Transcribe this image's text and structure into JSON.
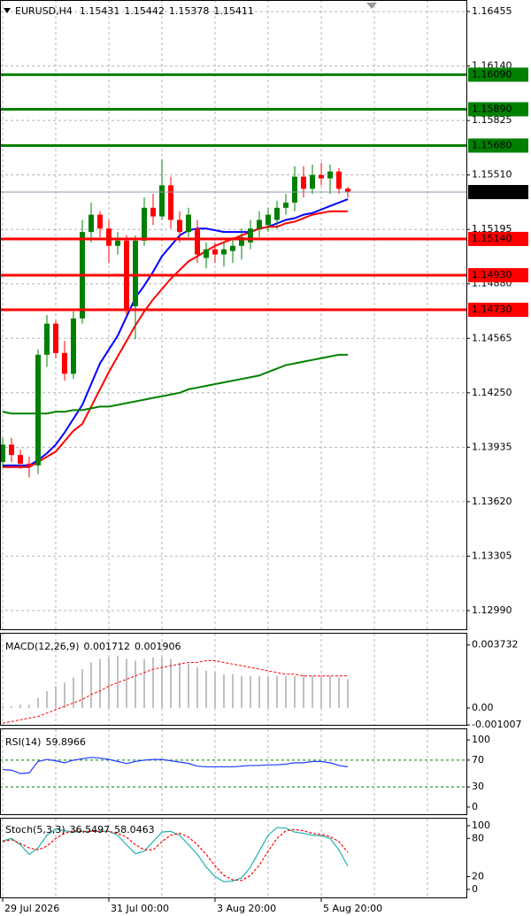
{
  "chart_data": [
    {
      "type": "candlestick",
      "title": "EURUSD,H4",
      "categories": [
        "29 Jul 2026",
        null,
        null,
        null,
        null,
        null,
        null,
        null,
        null,
        null,
        null,
        null,
        "31 Jul 00:00",
        null,
        null,
        null,
        null,
        null,
        null,
        null,
        null,
        null,
        null,
        null,
        "3 Aug 20:00",
        null,
        null,
        null,
        null,
        null,
        null,
        null,
        null,
        null,
        null,
        null,
        "5 Aug 20:00",
        null,
        null,
        null
      ],
      "open": [
        1.1385,
        1.1395,
        1.1389,
        1.1384,
        1.1383,
        1.1447,
        1.1465,
        1.1448,
        1.1436,
        1.1468,
        1.1518,
        1.1528,
        1.152,
        1.151,
        1.1513,
        1.1475,
        1.1513,
        1.1532,
        1.1527,
        1.1545,
        1.1525,
        1.1518,
        1.152,
        1.1503,
        1.1508,
        1.1505,
        1.1507,
        1.151,
        1.1512,
        1.152,
        1.1522,
        1.1525,
        1.1532,
        1.1535,
        1.155,
        1.1543,
        1.1551,
        1.1549,
        1.1553,
        1.15431
      ],
      "high": [
        1.1399,
        1.1399,
        1.1392,
        1.1388,
        1.145,
        1.147,
        1.1467,
        1.1455,
        1.1472,
        1.1525,
        1.1535,
        1.153,
        1.1525,
        1.1518,
        1.1516,
        1.1516,
        1.1538,
        1.154,
        1.156,
        1.155,
        1.153,
        1.1532,
        1.1525,
        1.1512,
        1.1512,
        1.1512,
        1.1515,
        1.152,
        1.1525,
        1.153,
        1.1532,
        1.1536,
        1.154,
        1.1556,
        1.1556,
        1.1557,
        1.1558,
        1.1557,
        1.1555,
        1.15442
      ],
      "low": [
        1.1382,
        1.1385,
        1.1381,
        1.1376,
        1.1378,
        1.144,
        1.1445,
        1.1432,
        1.1433,
        1.1465,
        1.1512,
        1.1515,
        1.15,
        1.1505,
        1.147,
        1.1456,
        1.151,
        1.1522,
        1.1525,
        1.152,
        1.1512,
        1.1515,
        1.15,
        1.1497,
        1.15,
        1.1498,
        1.15,
        1.1502,
        1.1508,
        1.1515,
        1.1518,
        1.152,
        1.1528,
        1.153,
        1.1538,
        1.154,
        1.1545,
        1.154,
        1.154,
        1.15378
      ],
      "close": [
        1.1395,
        1.1389,
        1.1384,
        1.1383,
        1.1447,
        1.1465,
        1.1448,
        1.1436,
        1.1468,
        1.1518,
        1.1528,
        1.152,
        1.151,
        1.1513,
        1.1473,
        1.1513,
        1.1532,
        1.1527,
        1.1545,
        1.1525,
        1.1518,
        1.1528,
        1.1505,
        1.1508,
        1.1505,
        1.1508,
        1.151,
        1.1515,
        1.152,
        1.1525,
        1.1528,
        1.1532,
        1.1535,
        1.155,
        1.1543,
        1.1551,
        1.1549,
        1.1553,
        1.1543,
        1.15411
      ],
      "up_color": "#008000",
      "down_color": "#ff0000",
      "overlays": [
        {
          "color": "#0000ff",
          "values": [
            1.1383,
            1.1383,
            1.1383,
            1.1383,
            1.1386,
            1.139,
            1.1395,
            1.1402,
            1.141,
            1.1418,
            1.143,
            1.1442,
            1.145,
            1.1458,
            1.1469,
            1.148,
            1.1487,
            1.1495,
            1.1504,
            1.151,
            1.1516,
            1.1519,
            1.152,
            1.152,
            1.1519,
            1.1518,
            1.1518,
            1.1518,
            1.1518,
            1.152,
            1.1521,
            1.1523,
            1.1525,
            1.1526,
            1.1528,
            1.1529,
            1.1531,
            1.1533,
            1.1535,
            1.1537
          ]
        },
        {
          "color": "#ff0000",
          "values": [
            1.1382,
            1.1382,
            1.1382,
            1.1382,
            1.1385,
            1.1388,
            1.1391,
            1.1397,
            1.1403,
            1.1407,
            1.1417,
            1.1427,
            1.1437,
            1.1446,
            1.1455,
            1.1464,
            1.1472,
            1.1479,
            1.1485,
            1.1491,
            1.1496,
            1.1501,
            1.1504,
            1.1507,
            1.151,
            1.1512,
            1.1514,
            1.1516,
            1.1518,
            1.152,
            1.1521,
            1.1521,
            1.1523,
            1.1524,
            1.1526,
            1.1528,
            1.1529,
            1.153,
            1.153,
            1.153
          ]
        },
        {
          "color": "#008000",
          "values": [
            1.1414,
            1.1413,
            1.1413,
            1.1413,
            1.1413,
            1.1413,
            1.1414,
            1.1414,
            1.1415,
            1.1415,
            1.1416,
            1.1417,
            1.1417,
            1.1418,
            1.1419,
            1.142,
            1.1421,
            1.1422,
            1.1423,
            1.1424,
            1.1425,
            1.1427,
            1.1428,
            1.1429,
            1.143,
            1.1431,
            1.1432,
            1.1433,
            1.1434,
            1.1435,
            1.1437,
            1.1439,
            1.1441,
            1.1442,
            1.1443,
            1.1444,
            1.1445,
            1.1446,
            1.1447,
            1.1447
          ]
        }
      ],
      "levels": [
        {
          "value": 1.1609,
          "label": "1.16090",
          "color": "#008000"
        },
        {
          "value": 1.1589,
          "label": "1.15890",
          "color": "#008000"
        },
        {
          "value": 1.1568,
          "label": "1.15680",
          "color": "#008000"
        },
        {
          "value": 1.1514,
          "label": "1.15140",
          "color": "#ff0000"
        },
        {
          "value": 1.1493,
          "label": "1.14930",
          "color": "#ff0000"
        },
        {
          "value": 1.1473,
          "label": "1.14730",
          "color": "#ff0000"
        }
      ],
      "ylim": [
        1.12877,
        1.16522
      ],
      "yticks": [
        1.16455,
        {
          "value": 1.1614,
          "label": "1.16140"
        },
        1.15825,
        {
          "value": 1.1551,
          "label": "1.15510"
        },
        1.15195,
        {
          "value": 1.1488,
          "label": "1.14880"
        },
        1.14565,
        {
          "value": 1.1425,
          "label": "1.14250"
        },
        1.13935,
        {
          "value": 1.1362,
          "label": "1.13620"
        },
        1.13305,
        {
          "value": 1.1299,
          "label": "1.12990"
        }
      ],
      "grid": true
    },
    {
      "type": "macd",
      "title": "MACD(12,26,9)",
      "series": [
        {
          "color": "#c0c0c0",
          "values": [
            0.0001,
            0.0001,
            0.0002,
            0.0002,
            0.0006,
            0.001,
            0.0013,
            0.0015,
            0.0018,
            0.0023,
            0.0027,
            0.0029,
            0.003,
            0.0031,
            0.0029,
            0.0028,
            0.0029,
            0.003,
            0.003,
            0.0029,
            0.0027,
            0.0026,
            0.0024,
            0.0022,
            0.0021,
            0.002,
            0.002,
            0.0019,
            0.0019,
            0.0019,
            0.0019,
            0.0019,
            0.0019,
            0.0019,
            0.002,
            0.0019,
            0.0019,
            0.0019,
            0.0018,
            0.001712
          ]
        },
        {
          "color": "#ff0000",
          "values": [
            -0.0009,
            -0.0008,
            -0.0007,
            -0.0006,
            -0.0005,
            -0.0003,
            -0.0001,
            0.0001,
            0.0003,
            0.0005,
            0.0008,
            0.001,
            0.0013,
            0.0015,
            0.0017,
            0.0019,
            0.0021,
            0.0023,
            0.0024,
            0.0025,
            0.0026,
            0.0027,
            0.0027,
            0.0028,
            0.0028,
            0.0027,
            0.0026,
            0.0025,
            0.0024,
            0.0023,
            0.0022,
            0.0021,
            0.002,
            0.002,
            0.0019,
            0.0019,
            0.0019,
            0.0019,
            0.0019,
            0.001906
          ]
        }
      ],
      "ylim": [
        -0.00105,
        0.0044
      ],
      "yticks": [
        0.003732,
        {
          "value": 0,
          "label": "0.00"
        },
        -0.001007
      ]
    },
    {
      "type": "line",
      "title": "RSI(14)",
      "series": [
        {
          "color": "#1e3cff",
          "values": [
            56,
            55,
            50,
            51,
            68,
            71,
            69,
            66,
            70,
            72,
            74,
            73,
            71,
            68,
            65,
            68,
            70,
            71,
            71,
            69,
            67,
            65,
            61,
            60,
            60,
            60,
            60,
            61,
            62,
            62,
            63,
            63,
            64,
            66,
            66,
            68,
            68,
            66,
            62,
            59.8966
          ]
        }
      ],
      "levels": [
        70,
        30
      ],
      "level_color": "#008000",
      "ylim": [
        -12,
        116
      ],
      "yticks": [
        100,
        70,
        30,
        0
      ]
    },
    {
      "type": "line",
      "title": "Stoch(5,3,3)",
      "series": [
        {
          "color": "#20b2aa",
          "values": [
            76,
            80,
            70,
            55,
            65,
            85,
            95,
            92,
            90,
            91,
            91,
            91,
            91,
            85,
            70,
            56,
            60,
            75,
            90,
            91,
            85,
            70,
            55,
            35,
            20,
            12,
            13,
            18,
            35,
            60,
            85,
            97,
            96,
            90,
            88,
            85,
            84,
            80,
            62,
            36.5497
          ]
        },
        {
          "color": "#ff0000",
          "dashed": true,
          "values": [
            75,
            78,
            72,
            65,
            62,
            68,
            80,
            88,
            92,
            91,
            91,
            91,
            91,
            88,
            82,
            70,
            62,
            62,
            75,
            85,
            88,
            82,
            70,
            55,
            37,
            22,
            15,
            14,
            22,
            38,
            60,
            80,
            92,
            94,
            92,
            88,
            86,
            83,
            75,
            58.0463
          ]
        }
      ],
      "ylim": [
        -14,
        111
      ],
      "yticks": [
        100,
        80,
        20,
        0
      ]
    }
  ]
}
